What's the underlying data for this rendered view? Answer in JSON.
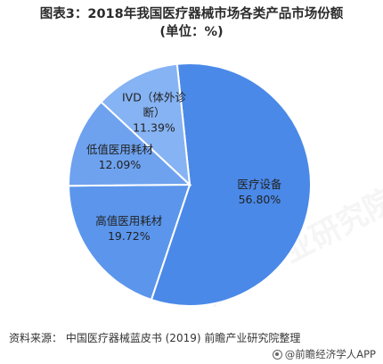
{
  "title": {
    "line1": "图表3：2018年我国医疗器械市场各类产品市场份额",
    "line2": "(单位：%)"
  },
  "chart_data": {
    "type": "pie",
    "title": "图表3：2018年我国医疗器械市场各类产品市场份额 (单位：%)",
    "slices": [
      {
        "label": "医疗设备",
        "value": 56.8,
        "value_text": "56.80%",
        "color": "#4a89e8"
      },
      {
        "label": "高值医用耗材",
        "value": 19.72,
        "value_text": "19.72%",
        "color": "#5b96ec"
      },
      {
        "label": "低值医用耗材",
        "value": 12.09,
        "value_text": "12.09%",
        "color": "#6ea2ef"
      },
      {
        "label": "IVD（体外诊断）",
        "label_lines": [
          "IVD（体外诊",
          "断）"
        ],
        "value": 11.39,
        "value_text": "11.39%",
        "color": "#86b3f3"
      }
    ],
    "start_angle_deg": -6,
    "direction": "clockwise",
    "border_color": "#ffffff"
  },
  "footer": {
    "source": "资料来源：  中国医疗器械蓝皮书 (2019) 前瞻产业研究院整理",
    "brand": "@前瞻经济学人APP"
  },
  "watermark": "前瞻产业研究院"
}
